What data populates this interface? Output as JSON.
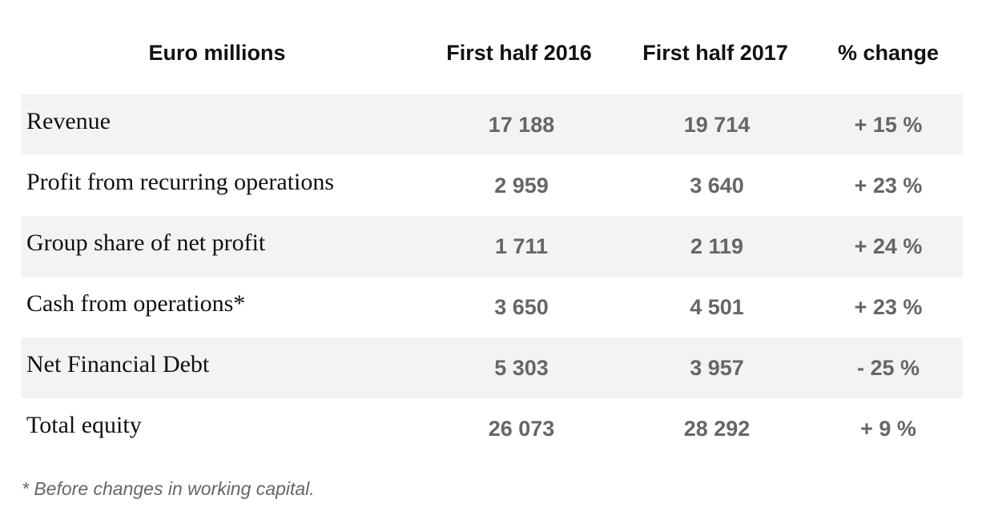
{
  "table": {
    "headers": [
      "Euro millions",
      "First half 2016",
      "First half 2017",
      "% change"
    ],
    "rows": [
      {
        "label": "Revenue",
        "h1_2016": "17 188",
        "h1_2017": "19 714",
        "change": "+ 15 %"
      },
      {
        "label": "Profit from recurring operations",
        "h1_2016": "2 959",
        "h1_2017": "3 640",
        "change": "+ 23 %"
      },
      {
        "label": "Group share of net profit",
        "h1_2016": "1 711",
        "h1_2017": "2 119",
        "change": "+ 24 %"
      },
      {
        "label": "Cash from operations*",
        "h1_2016": "3 650",
        "h1_2017": "4 501",
        "change": "+ 23 %"
      },
      {
        "label": "Net Financial Debt",
        "h1_2016": "5 303",
        "h1_2017": "3 957",
        "change": "- 25 %"
      },
      {
        "label": "Total equity",
        "h1_2016": "26 073",
        "h1_2017": "28 292",
        "change": "+ 9 %"
      }
    ]
  },
  "footnote": "* Before changes in working capital.",
  "colors": {
    "row_shade": "#f3f3f3",
    "header_text": "#111111",
    "number_text": "#666666"
  }
}
